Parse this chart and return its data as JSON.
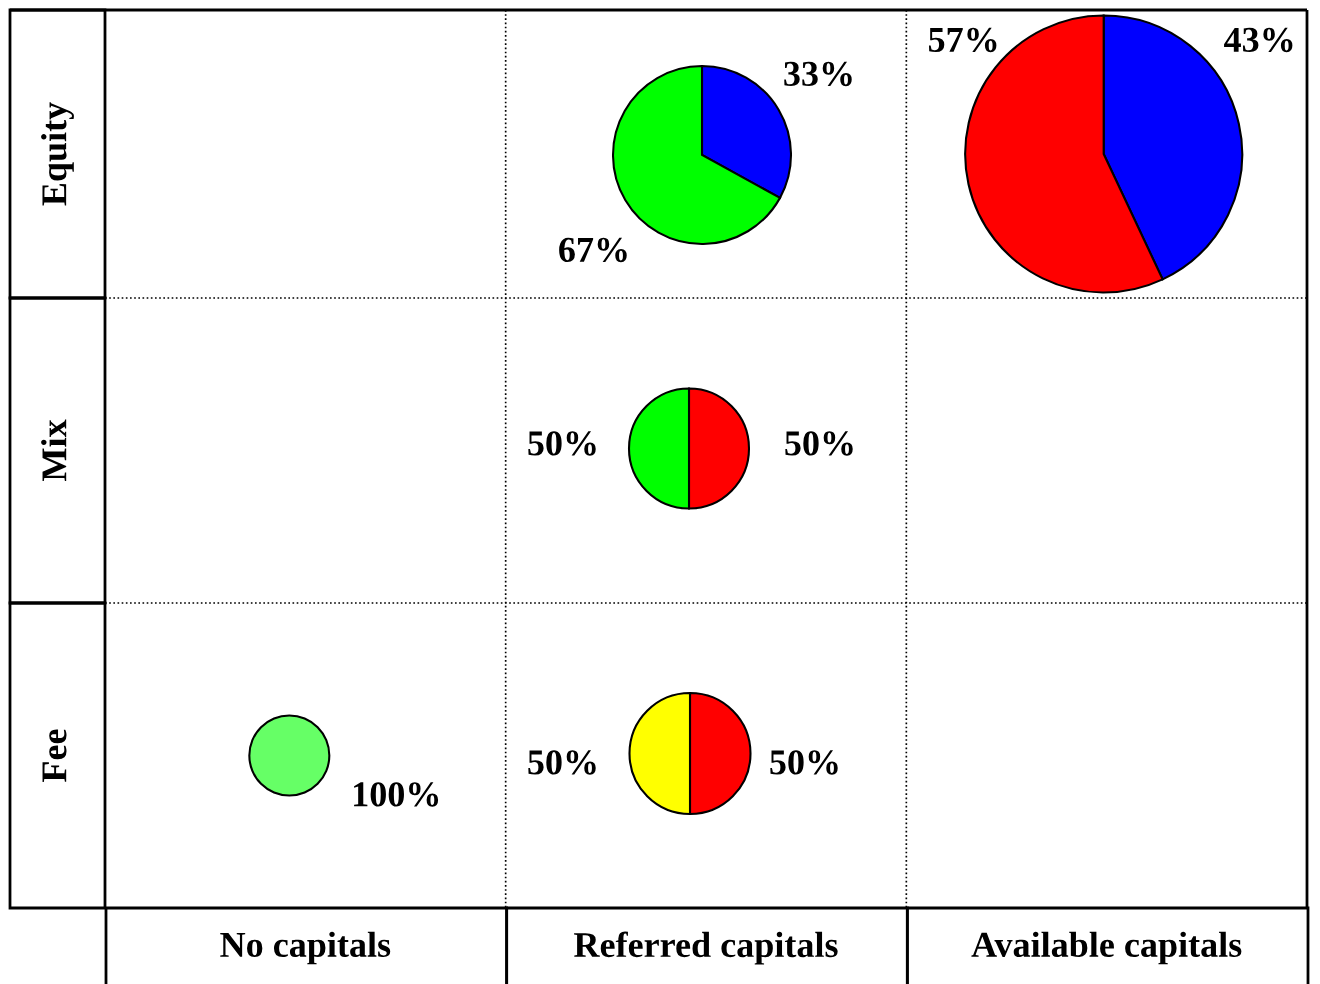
{
  "chart_data": [
    {
      "type": "other",
      "categories": [
        "No capitals",
        "Referred capitals",
        "Available capitals"
      ],
      "y_categories": [
        "Equity",
        "Mix",
        "Fee"
      ]
    },
    {
      "type": "pie",
      "categories": [
        null,
        null
      ],
      "values": [
        33,
        67
      ],
      "colors": [
        "#0000ff",
        "#00ff00"
      ],
      "value_labels": [
        "33%",
        "67%"
      ]
    },
    {
      "type": "pie",
      "categories": [
        null,
        null
      ],
      "values": [
        43,
        57
      ],
      "colors": [
        "#0000ff",
        "#ff0000"
      ],
      "value_labels": [
        "43%",
        "57%"
      ]
    },
    {
      "type": "pie",
      "categories": [
        null,
        null
      ],
      "values": [
        50,
        50
      ],
      "colors": [
        "#ff0000",
        "#00ff00"
      ],
      "value_labels": [
        "50%",
        "50%"
      ]
    },
    {
      "type": "pie",
      "categories": [
        null
      ],
      "values": [
        100
      ],
      "colors": [
        "#66ff66"
      ],
      "value_labels": [
        "100%"
      ]
    },
    {
      "type": "pie",
      "categories": [
        null,
        null
      ],
      "values": [
        50,
        50
      ],
      "colors": [
        "#ff0000",
        "#ffff00"
      ],
      "value_labels": [
        "50%",
        "50%"
      ]
    }
  ]
}
